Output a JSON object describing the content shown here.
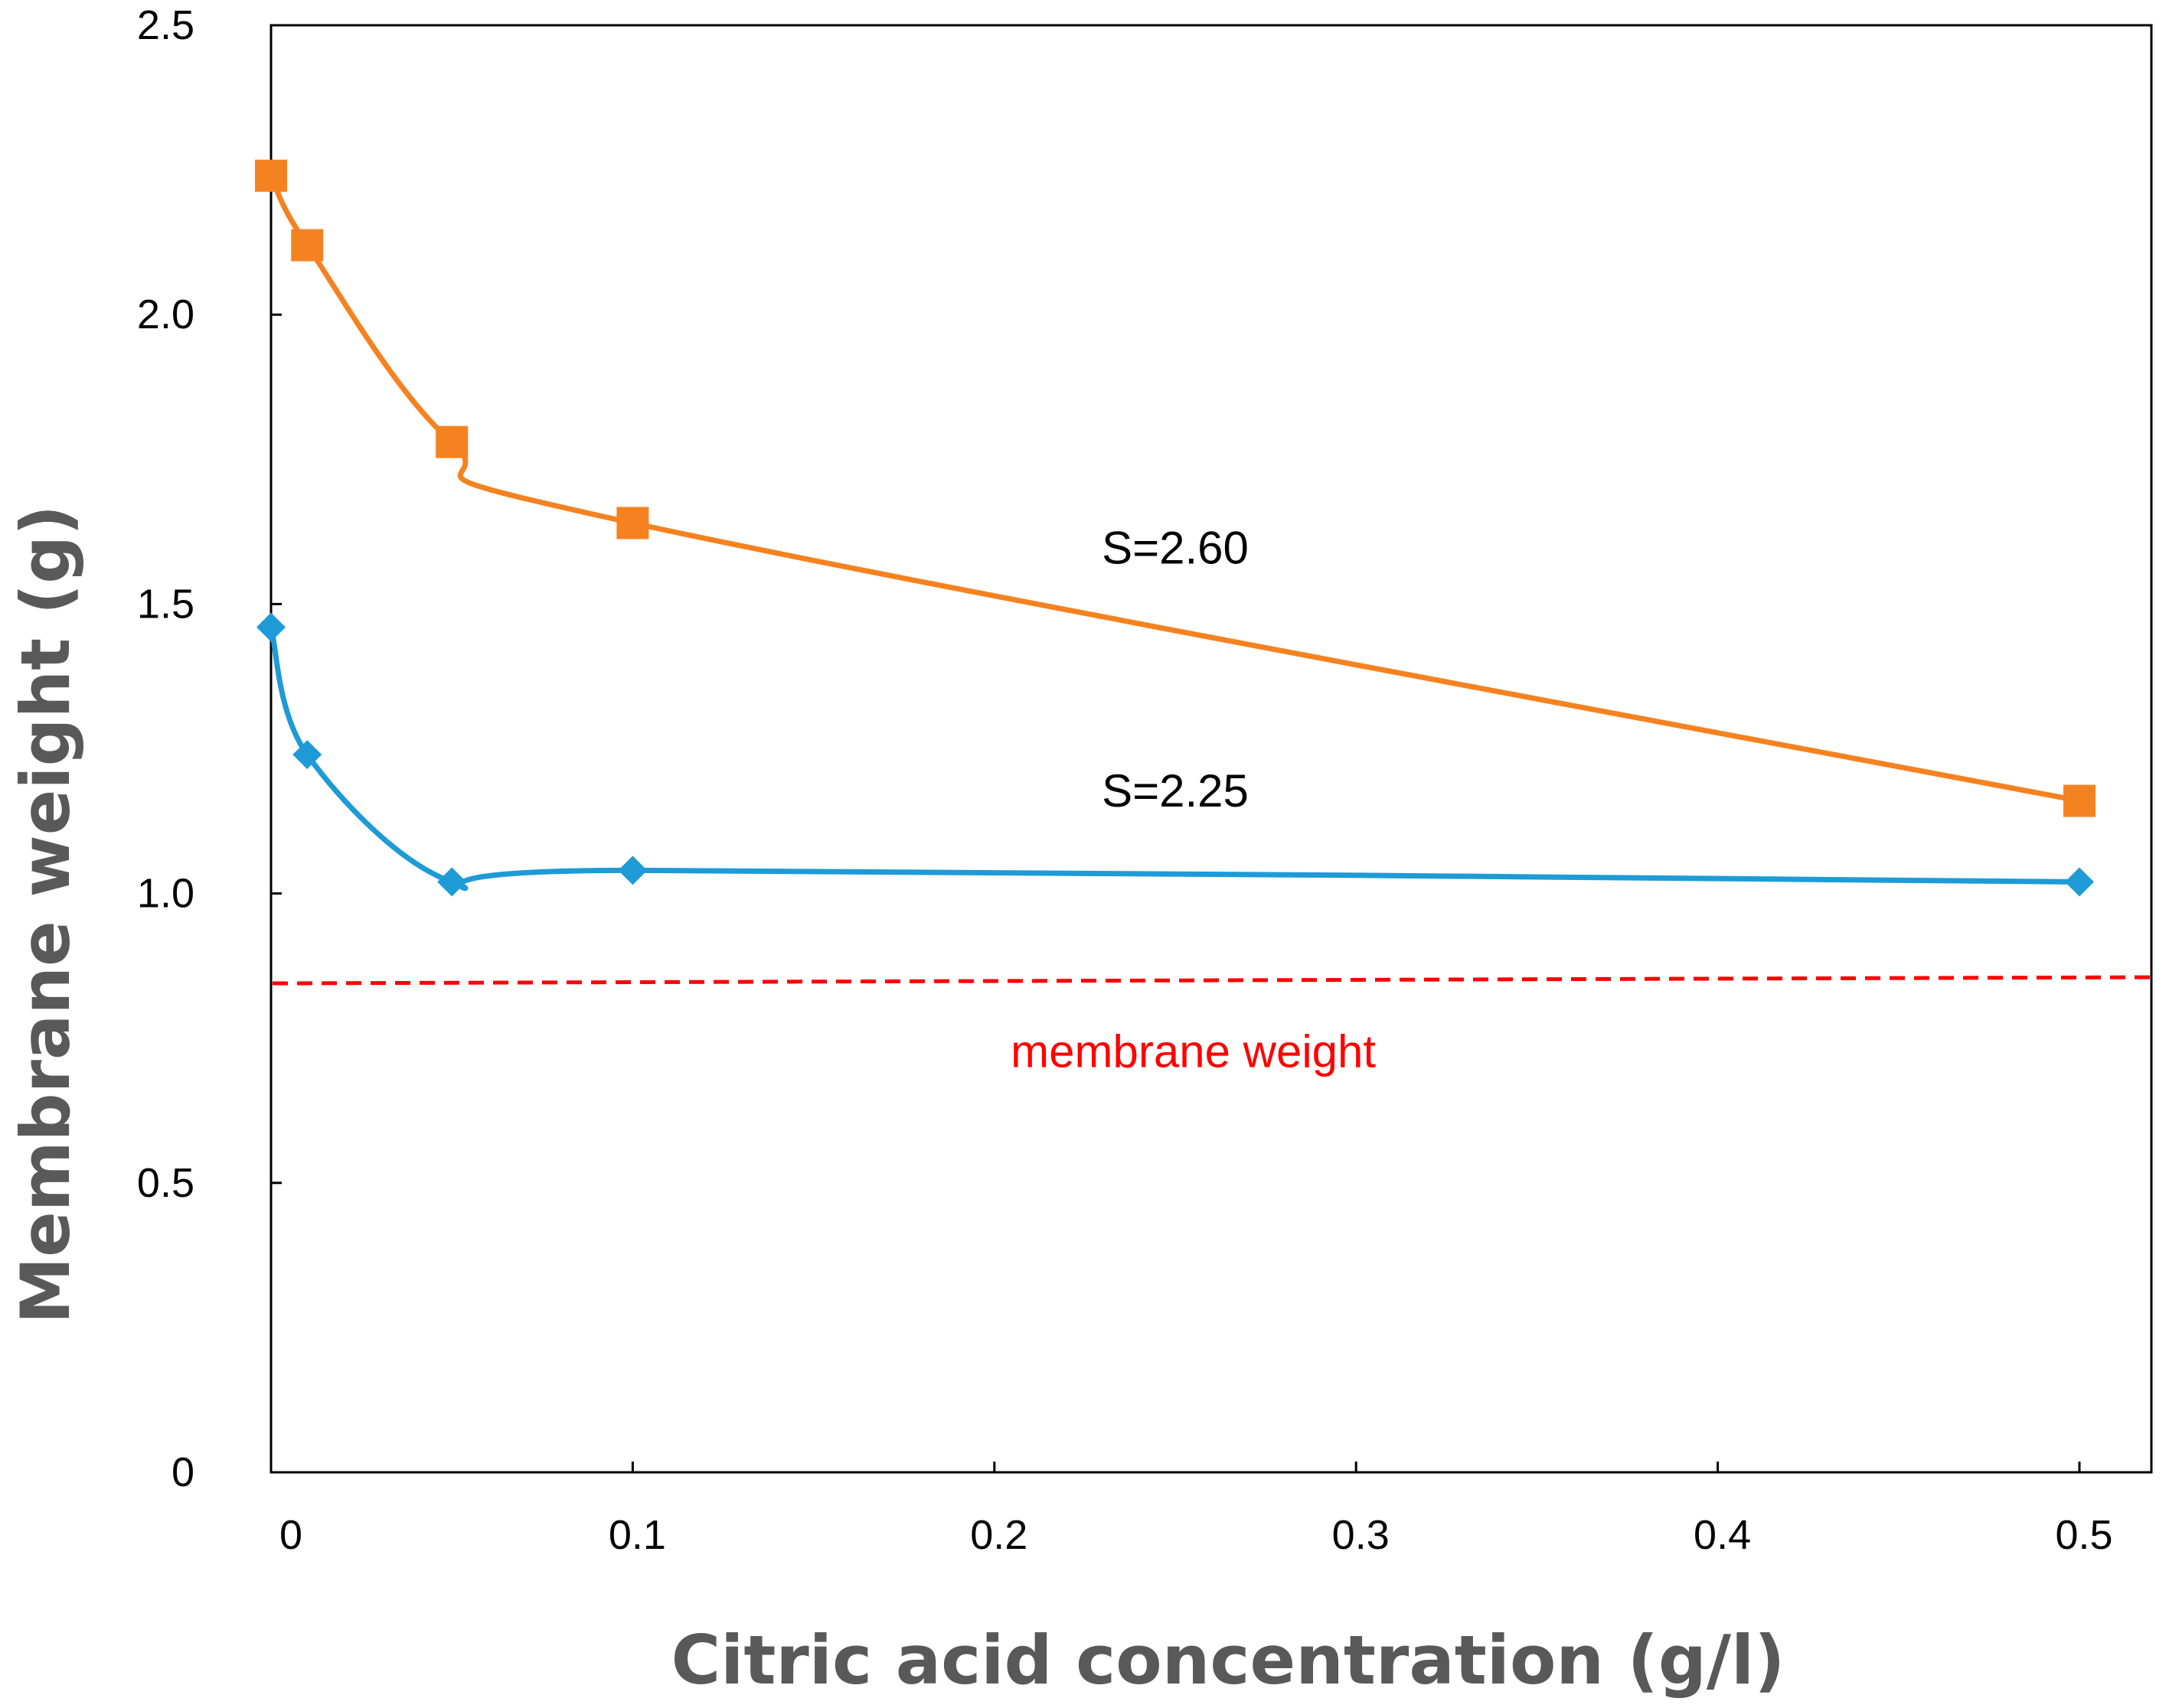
{
  "chart_data": {
    "type": "line",
    "title": "",
    "xlabel": "Citric acid concentration (g/l)",
    "ylabel": "Membrane weight (g)",
    "xlim": [
      0,
      0.5
    ],
    "ylim": [
      0,
      2.5
    ],
    "grid": false,
    "legend": "none",
    "xticks": [
      0,
      0.1,
      0.2,
      0.3,
      0.4,
      0.5
    ],
    "xtick_labels": [
      "0",
      "0.1",
      "0.2",
      "0.3",
      "0.4",
      "0.5"
    ],
    "yticks": [
      0,
      0.5,
      1.0,
      1.5,
      2.0,
      2.5
    ],
    "ytick_labels": [
      "0",
      "0.5",
      "1.0",
      "1.5",
      "2.0",
      "2.5"
    ],
    "series": [
      {
        "name": "S=2.60",
        "color": "#F58220",
        "marker": "square",
        "x": [
          0,
          0.01,
          0.05,
          0.1,
          0.5
        ],
        "values": [
          2.24,
          2.12,
          1.78,
          1.64,
          1.16
        ]
      },
      {
        "name": "S=2.25",
        "color": "#1E9BD7",
        "marker": "diamond",
        "x": [
          0,
          0.01,
          0.05,
          0.1,
          0.5
        ],
        "values": [
          1.46,
          1.24,
          1.02,
          1.04,
          1.02
        ]
      }
    ],
    "reference_line": {
      "label": "membrane weight",
      "value": 0.85,
      "color": "#FF0000",
      "style": "dashed"
    },
    "annotations": [
      {
        "text": "S=2.60",
        "x": 0.25,
        "y": 1.57,
        "color": "#000000"
      },
      {
        "text": "S=2.25",
        "x": 0.25,
        "y": 1.15,
        "color": "#000000"
      },
      {
        "text": "membrane weight",
        "x": 0.255,
        "y": 0.7,
        "color": "#FF0000"
      }
    ]
  }
}
